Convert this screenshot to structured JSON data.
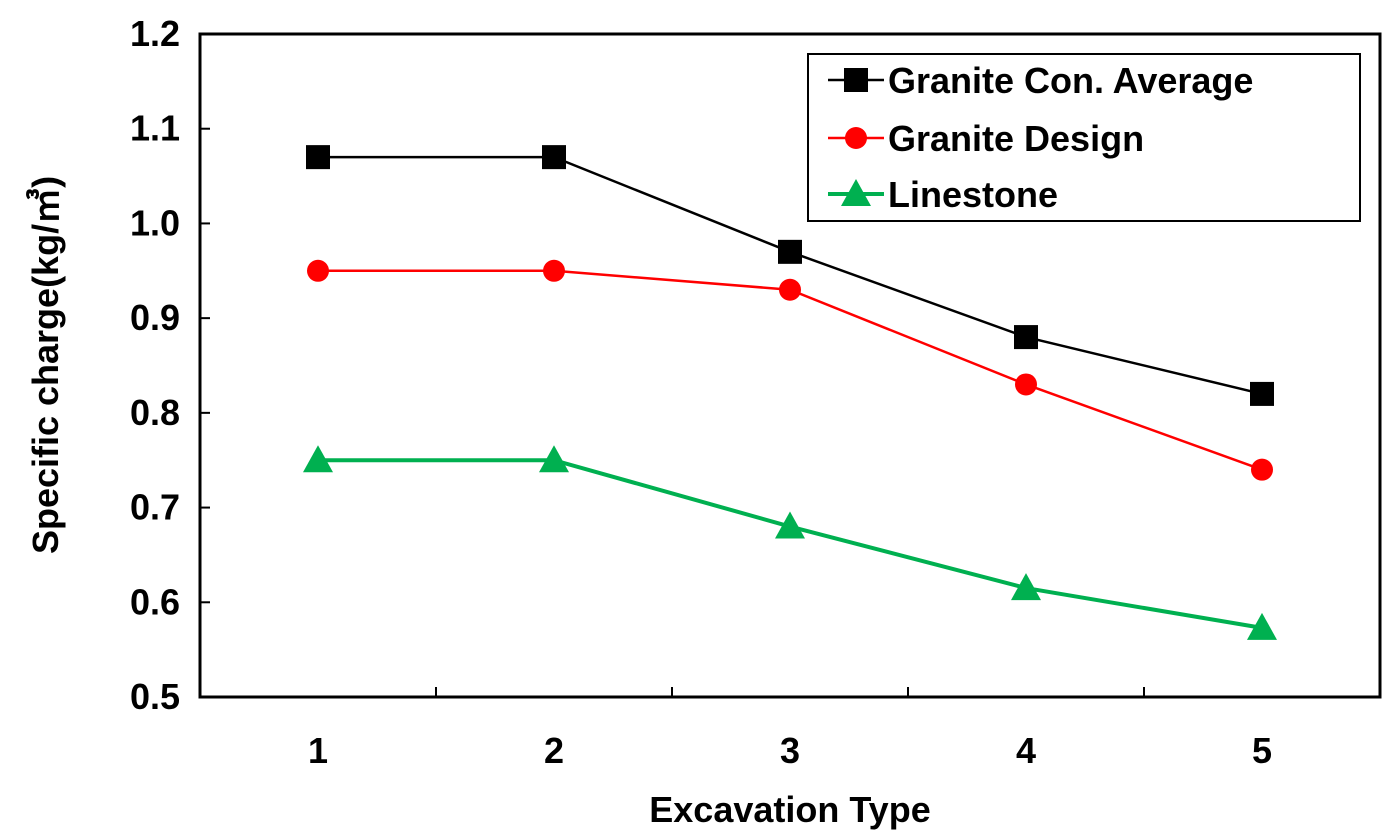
{
  "chart_data": {
    "type": "line",
    "title": "",
    "xlabel": "Excavation Type",
    "ylabel": "Specific charge(kg/㎥)",
    "x": [
      1,
      2,
      3,
      4,
      5
    ],
    "xticks": [
      "1",
      "2",
      "3",
      "4",
      "5"
    ],
    "ylim": [
      0.5,
      1.2
    ],
    "yticks": [
      "0.5",
      "0.6",
      "0.7",
      "0.8",
      "0.9",
      "1.0",
      "1.1",
      "1.2"
    ],
    "grid": false,
    "legend_position": "top-right",
    "series": [
      {
        "name": "Granite Con. Average",
        "values": [
          1.07,
          1.07,
          0.97,
          0.88,
          0.82
        ],
        "color": "#000000",
        "marker": "square"
      },
      {
        "name": "Granite Design",
        "values": [
          0.95,
          0.95,
          0.93,
          0.83,
          0.74
        ],
        "color": "#ff0000",
        "marker": "circle"
      },
      {
        "name": "Linestone",
        "values": [
          0.75,
          0.75,
          0.68,
          0.615,
          0.573
        ],
        "color": "#00b050",
        "marker": "triangle"
      }
    ]
  }
}
